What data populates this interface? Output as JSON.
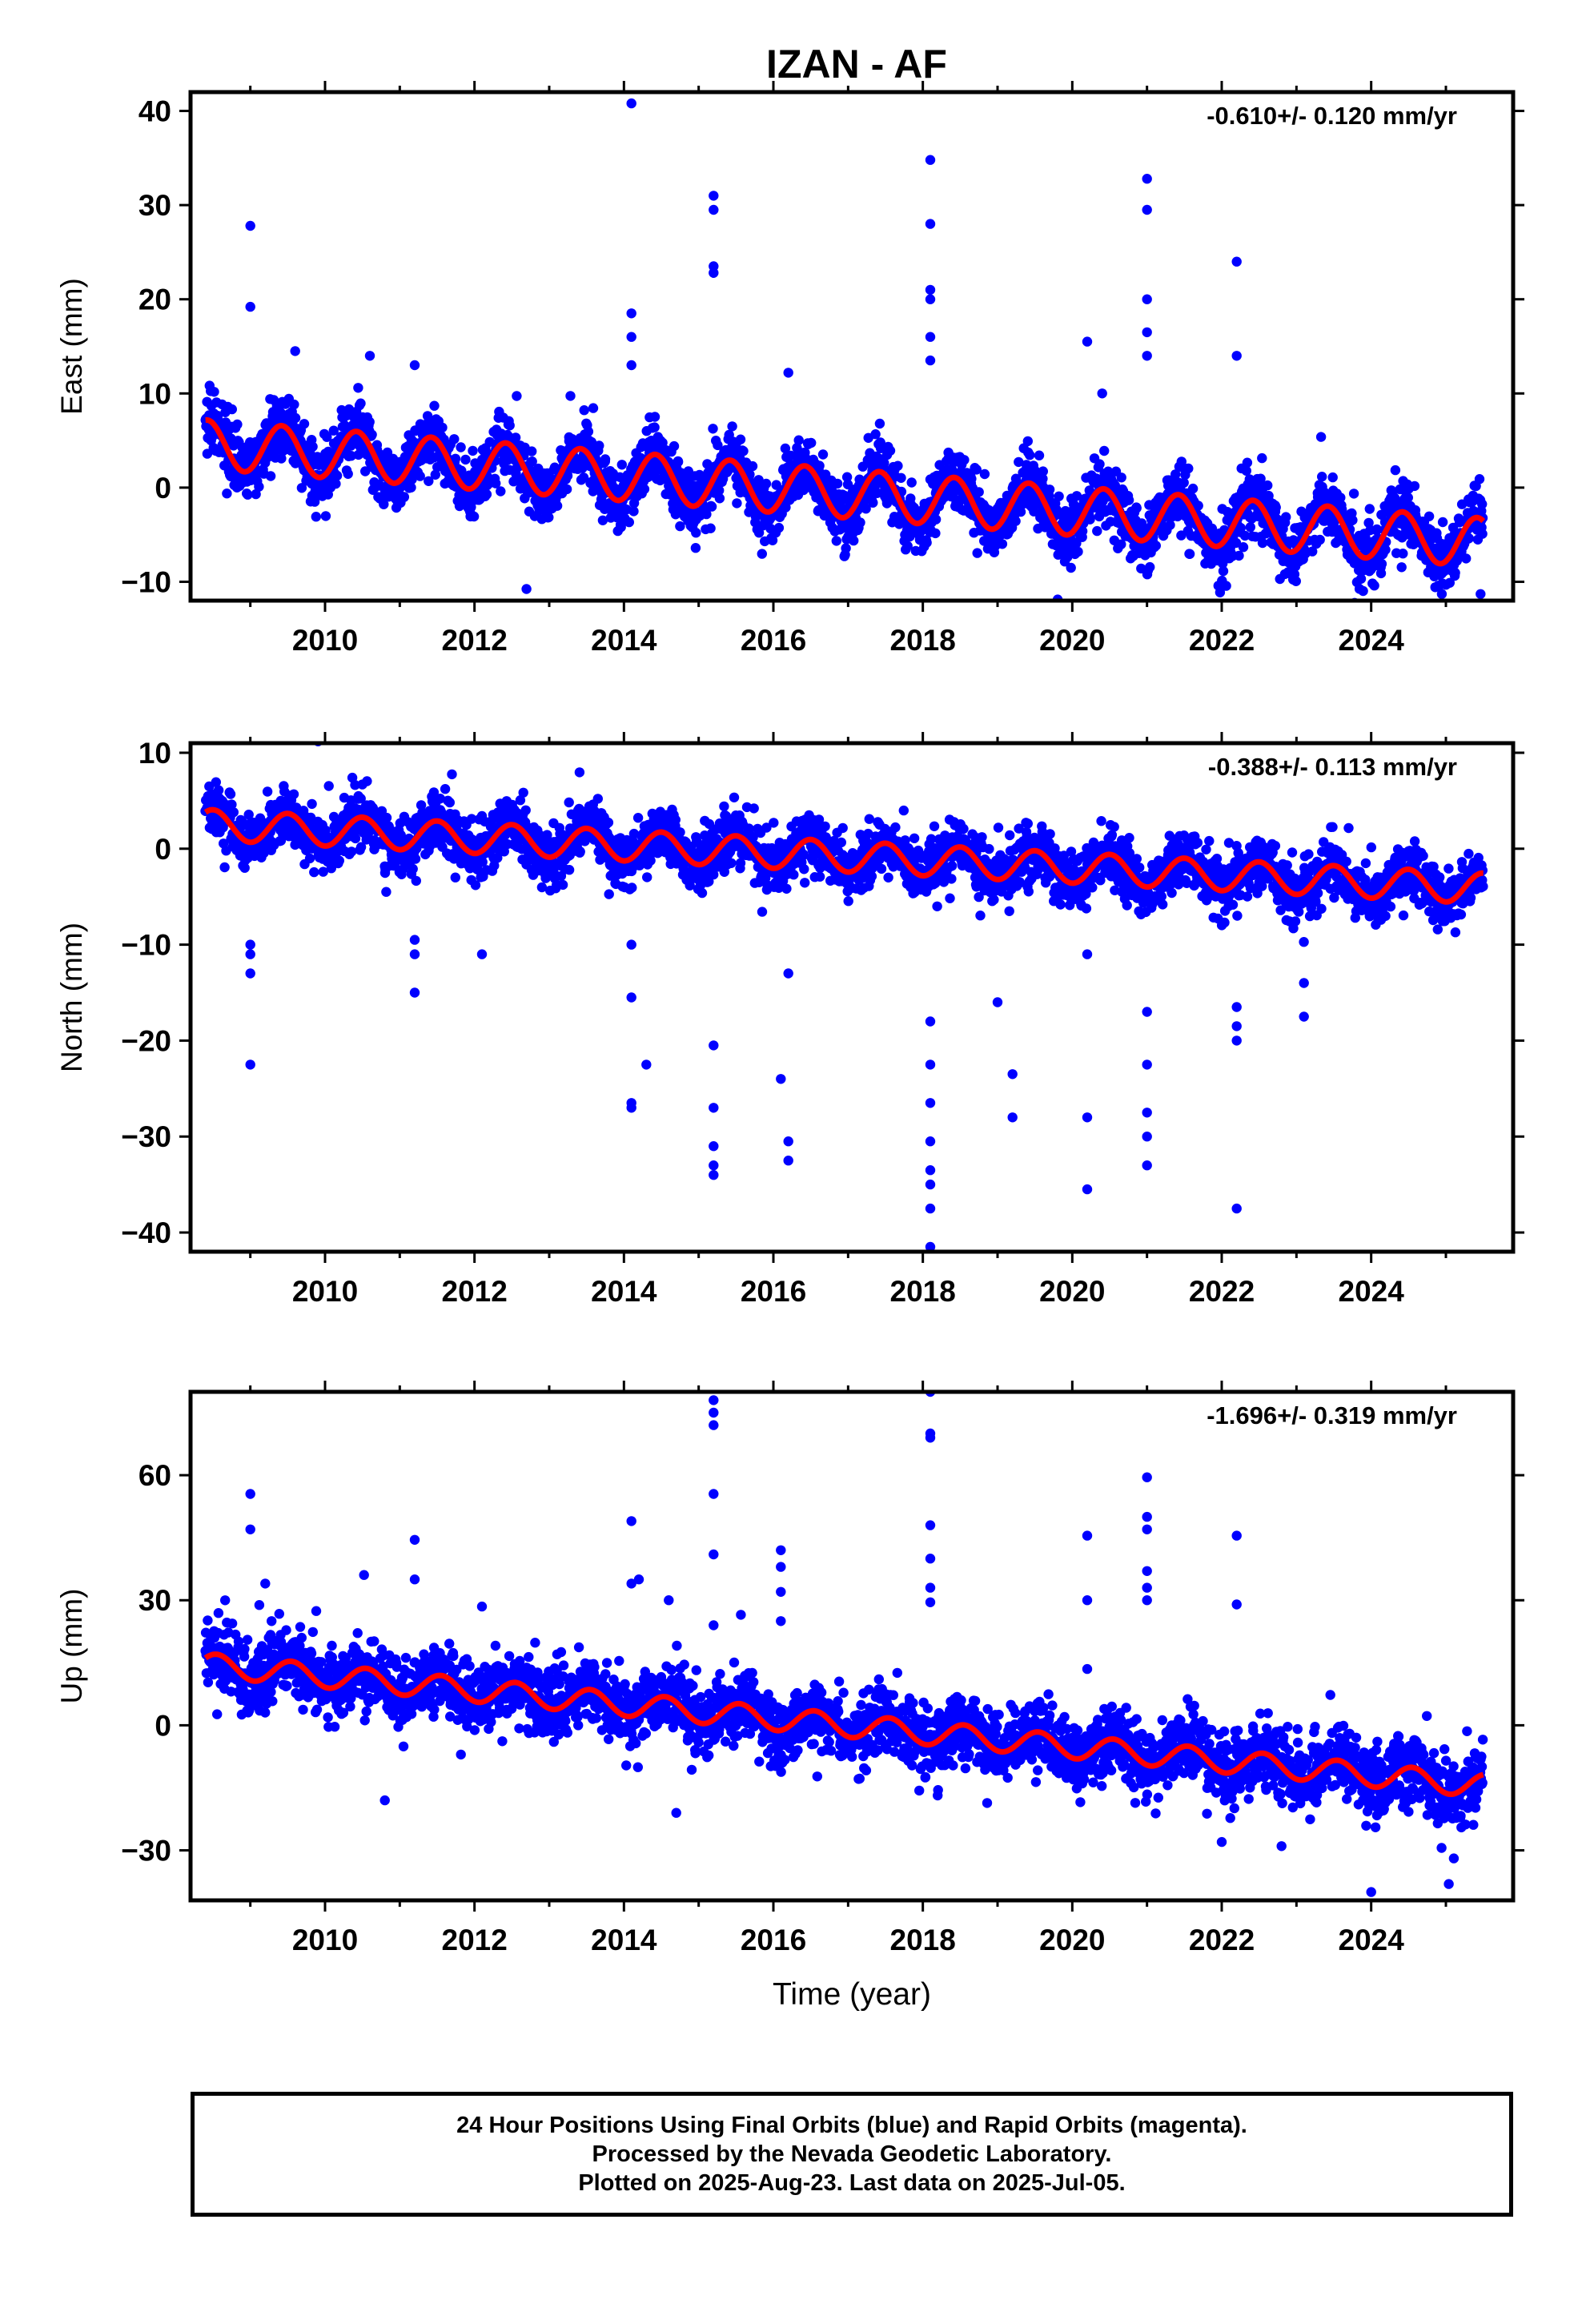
{
  "title": "IZAN - AF",
  "footer": {
    "line1": "24 Hour Positions Using Final Orbits (blue) and Rapid Orbits (magenta).",
    "line2": "Processed by the Nevada Geodetic Laboratory.",
    "line3": "Plotted on 2025-Aug-23. Last data on 2025-Jul-05."
  },
  "colors": {
    "points": "#0000ff",
    "fit": "#ff0000",
    "axis": "#000000"
  },
  "chart_data": [
    {
      "type": "scatter",
      "ylabel": "East (mm)",
      "xlabel": "",
      "rate_label": "-0.610+/- 0.120 mm/yr",
      "xlim": [
        2008.2,
        2025.9
      ],
      "ylim": [
        -12,
        42
      ],
      "xticks": [
        2010,
        2012,
        2014,
        2016,
        2018,
        2020,
        2022,
        2024
      ],
      "yticks": [
        -10,
        0,
        10,
        20,
        30,
        40
      ],
      "trend": {
        "start_year": 2008.4,
        "end_year": 2025.5,
        "start_value": 4.6,
        "rate": -0.61
      },
      "seasonal": {
        "amplitude": 2.6,
        "peak_year_fraction": 0.42
      },
      "scatter_sd": 1.6,
      "outliers": [
        [
          2009.0,
          27.8
        ],
        [
          2009.0,
          19.2
        ],
        [
          2009.6,
          14.5
        ],
        [
          2010.6,
          14.0
        ],
        [
          2011.2,
          13.0
        ],
        [
          2014.1,
          40.8
        ],
        [
          2014.1,
          18.5
        ],
        [
          2014.1,
          16.0
        ],
        [
          2014.1,
          13.0
        ],
        [
          2015.2,
          31.0
        ],
        [
          2015.2,
          29.5
        ],
        [
          2015.2,
          23.5
        ],
        [
          2015.2,
          22.8
        ],
        [
          2016.2,
          12.2
        ],
        [
          2018.1,
          34.8
        ],
        [
          2018.1,
          28.0
        ],
        [
          2018.1,
          21.0
        ],
        [
          2018.1,
          20.0
        ],
        [
          2018.1,
          16.0
        ],
        [
          2018.1,
          13.5
        ],
        [
          2020.2,
          15.5
        ],
        [
          2020.4,
          10.0
        ],
        [
          2021.0,
          32.8
        ],
        [
          2021.0,
          29.5
        ],
        [
          2021.0,
          20.0
        ],
        [
          2021.0,
          16.5
        ],
        [
          2021.0,
          14.0
        ],
        [
          2022.2,
          24.0
        ],
        [
          2022.2,
          14.0
        ]
      ]
    },
    {
      "type": "scatter",
      "ylabel": "North (mm)",
      "xlabel": "",
      "rate_label": "-0.388+/- 0.113 mm/yr",
      "xlim": [
        2008.2,
        2025.9
      ],
      "ylim": [
        -42,
        11
      ],
      "xticks": [
        2010,
        2012,
        2014,
        2016,
        2018,
        2020,
        2022,
        2024
      ],
      "yticks": [
        -40,
        -30,
        -20,
        -10,
        0,
        10
      ],
      "trend": {
        "start_year": 2008.4,
        "end_year": 2025.5,
        "start_value": 2.5,
        "rate": -0.388
      },
      "seasonal": {
        "amplitude": 1.6,
        "peak_year_fraction": 0.5
      },
      "scatter_sd": 1.4,
      "outliers": [
        [
          2009.0,
          -10.0
        ],
        [
          2009.0,
          -11.0
        ],
        [
          2009.0,
          -13.0
        ],
        [
          2009.0,
          -22.5
        ],
        [
          2011.2,
          -9.5
        ],
        [
          2011.2,
          -11.0
        ],
        [
          2011.2,
          -15.0
        ],
        [
          2012.1,
          -11.0
        ],
        [
          2014.1,
          -10.0
        ],
        [
          2014.1,
          -15.5
        ],
        [
          2014.1,
          -26.5
        ],
        [
          2014.1,
          -27.0
        ],
        [
          2014.3,
          -22.5
        ],
        [
          2015.2,
          -20.5
        ],
        [
          2015.2,
          -27.0
        ],
        [
          2015.2,
          -31.0
        ],
        [
          2015.2,
          -33.0
        ],
        [
          2015.2,
          -34.0
        ],
        [
          2016.1,
          -24.0
        ],
        [
          2016.2,
          -30.5
        ],
        [
          2016.2,
          -32.5
        ],
        [
          2016.2,
          -13.0
        ],
        [
          2018.1,
          -18.0
        ],
        [
          2018.1,
          -22.5
        ],
        [
          2018.1,
          -26.5
        ],
        [
          2018.1,
          -30.5
        ],
        [
          2018.1,
          -33.5
        ],
        [
          2018.1,
          -35.0
        ],
        [
          2018.1,
          -37.5
        ],
        [
          2018.1,
          -41.5
        ],
        [
          2019.0,
          -16.0
        ],
        [
          2019.2,
          -23.5
        ],
        [
          2019.2,
          -28.0
        ],
        [
          2020.2,
          -28.0
        ],
        [
          2020.2,
          -35.5
        ],
        [
          2020.2,
          -11.0
        ],
        [
          2021.0,
          -17.0
        ],
        [
          2021.0,
          -22.5
        ],
        [
          2021.0,
          -27.5
        ],
        [
          2021.0,
          -30.0
        ],
        [
          2021.0,
          -33.0
        ],
        [
          2022.2,
          -16.5
        ],
        [
          2022.2,
          -18.5
        ],
        [
          2022.2,
          -20.0
        ],
        [
          2022.2,
          -37.5
        ],
        [
          2023.1,
          -14.0
        ],
        [
          2023.1,
          -17.5
        ]
      ]
    },
    {
      "type": "scatter",
      "ylabel": "Up (mm)",
      "xlabel": "Time (year)",
      "rate_label": "-1.696+/- 0.319 mm/yr",
      "xlim": [
        2008.2,
        2025.9
      ],
      "ylim": [
        -42,
        80
      ],
      "xticks": [
        2010,
        2012,
        2014,
        2016,
        2018,
        2020,
        2022,
        2024
      ],
      "yticks": [
        -30,
        0,
        30,
        60
      ],
      "trend": {
        "start_year": 2008.4,
        "end_year": 2025.5,
        "start_value": 14.5,
        "rate": -1.696
      },
      "seasonal": {
        "amplitude": 2.8,
        "peak_year_fraction": 0.55
      },
      "scatter_sd": 4.0,
      "outliers": [
        [
          2009.0,
          55.5
        ],
        [
          2009.0,
          47.0
        ],
        [
          2009.2,
          34.0
        ],
        [
          2010.8,
          -18.0
        ],
        [
          2011.2,
          44.5
        ],
        [
          2011.2,
          35.0
        ],
        [
          2012.1,
          28.5
        ],
        [
          2014.1,
          49.0
        ],
        [
          2014.1,
          34.0
        ],
        [
          2014.2,
          35.0
        ],
        [
          2014.6,
          30.0
        ],
        [
          2014.7,
          -21.0
        ],
        [
          2015.2,
          81.0
        ],
        [
          2015.2,
          78.0
        ],
        [
          2015.2,
          75.0
        ],
        [
          2015.2,
          72.0
        ],
        [
          2015.2,
          55.5
        ],
        [
          2015.2,
          41.0
        ],
        [
          2015.2,
          24.0
        ],
        [
          2016.1,
          42.0
        ],
        [
          2016.1,
          38.0
        ],
        [
          2016.1,
          32.0
        ],
        [
          2016.1,
          25.0
        ],
        [
          2018.1,
          80.0
        ],
        [
          2018.1,
          70.0
        ],
        [
          2018.1,
          69.0
        ],
        [
          2018.1,
          48.0
        ],
        [
          2018.1,
          40.0
        ],
        [
          2018.1,
          33.0
        ],
        [
          2018.1,
          29.5
        ],
        [
          2020.2,
          45.5
        ],
        [
          2020.2,
          30.0
        ],
        [
          2020.2,
          13.5
        ],
        [
          2021.0,
          59.5
        ],
        [
          2021.0,
          50.0
        ],
        [
          2021.0,
          47.0
        ],
        [
          2021.0,
          37.0
        ],
        [
          2021.0,
          33.0
        ],
        [
          2021.0,
          30.0
        ],
        [
          2022.2,
          45.5
        ],
        [
          2022.2,
          29.0
        ],
        [
          2022.0,
          -28.0
        ],
        [
          2022.8,
          -29.0
        ],
        [
          2024.0,
          -40.0
        ]
      ]
    }
  ]
}
